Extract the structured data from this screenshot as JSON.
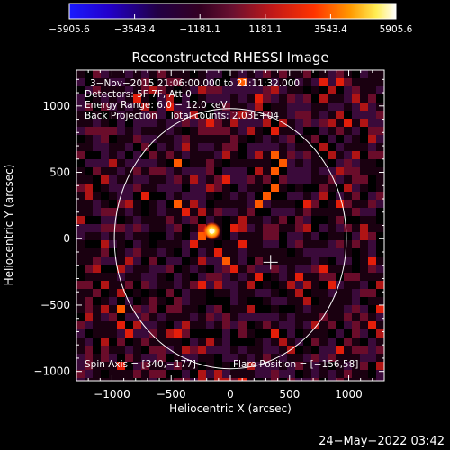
{
  "chart_data": {
    "type": "heatmap",
    "title": "Reconstructed RHESSI Image",
    "xlabel": "Heliocentric X (arcsec)",
    "ylabel": "Heliocentric Y (arcsec)",
    "xlim": [
      -1300,
      1300
    ],
    "ylim": [
      -1070,
      1270
    ],
    "x_ticks": [
      -1000,
      -500,
      0,
      500,
      1000
    ],
    "x_tick_labels": [
      "−1000",
      "−500",
      "0",
      "500",
      "1000"
    ],
    "y_ticks": [
      -1000,
      -500,
      0,
      500,
      1000
    ],
    "y_tick_labels": [
      "−1000",
      "−500",
      "0",
      "500",
      "1000"
    ],
    "colorbar": {
      "colormap": "hot-metal (blue-black-purple-red-orange-yellow-white)",
      "range": [
        -5905.6,
        5905.6
      ],
      "tick_labels": [
        "−5905.6",
        "−3543.4",
        "−1181.1",
        "1181.1",
        "3543.4",
        "5905.6"
      ]
    },
    "annotations": [
      "3−Nov−2015 21:06:00.000 to 21:11:32.000",
      "Detectors: 5F 7F, Att 0",
      "Energy Range: 6.0 − 12.0 keV",
      "Back Projection    Total counts: 2.03E+04"
    ],
    "spin_axis_label": "Spin Axis = [340,−177]",
    "flare_position_label": "Flare Position = [−156,58]",
    "flare_position": [
      -156,
      58
    ],
    "spin_axis": [
      340,
      -177
    ],
    "solar_disk_radius": 980,
    "grid": false
  },
  "footer": {
    "date": "24−May−2022 03:42"
  }
}
